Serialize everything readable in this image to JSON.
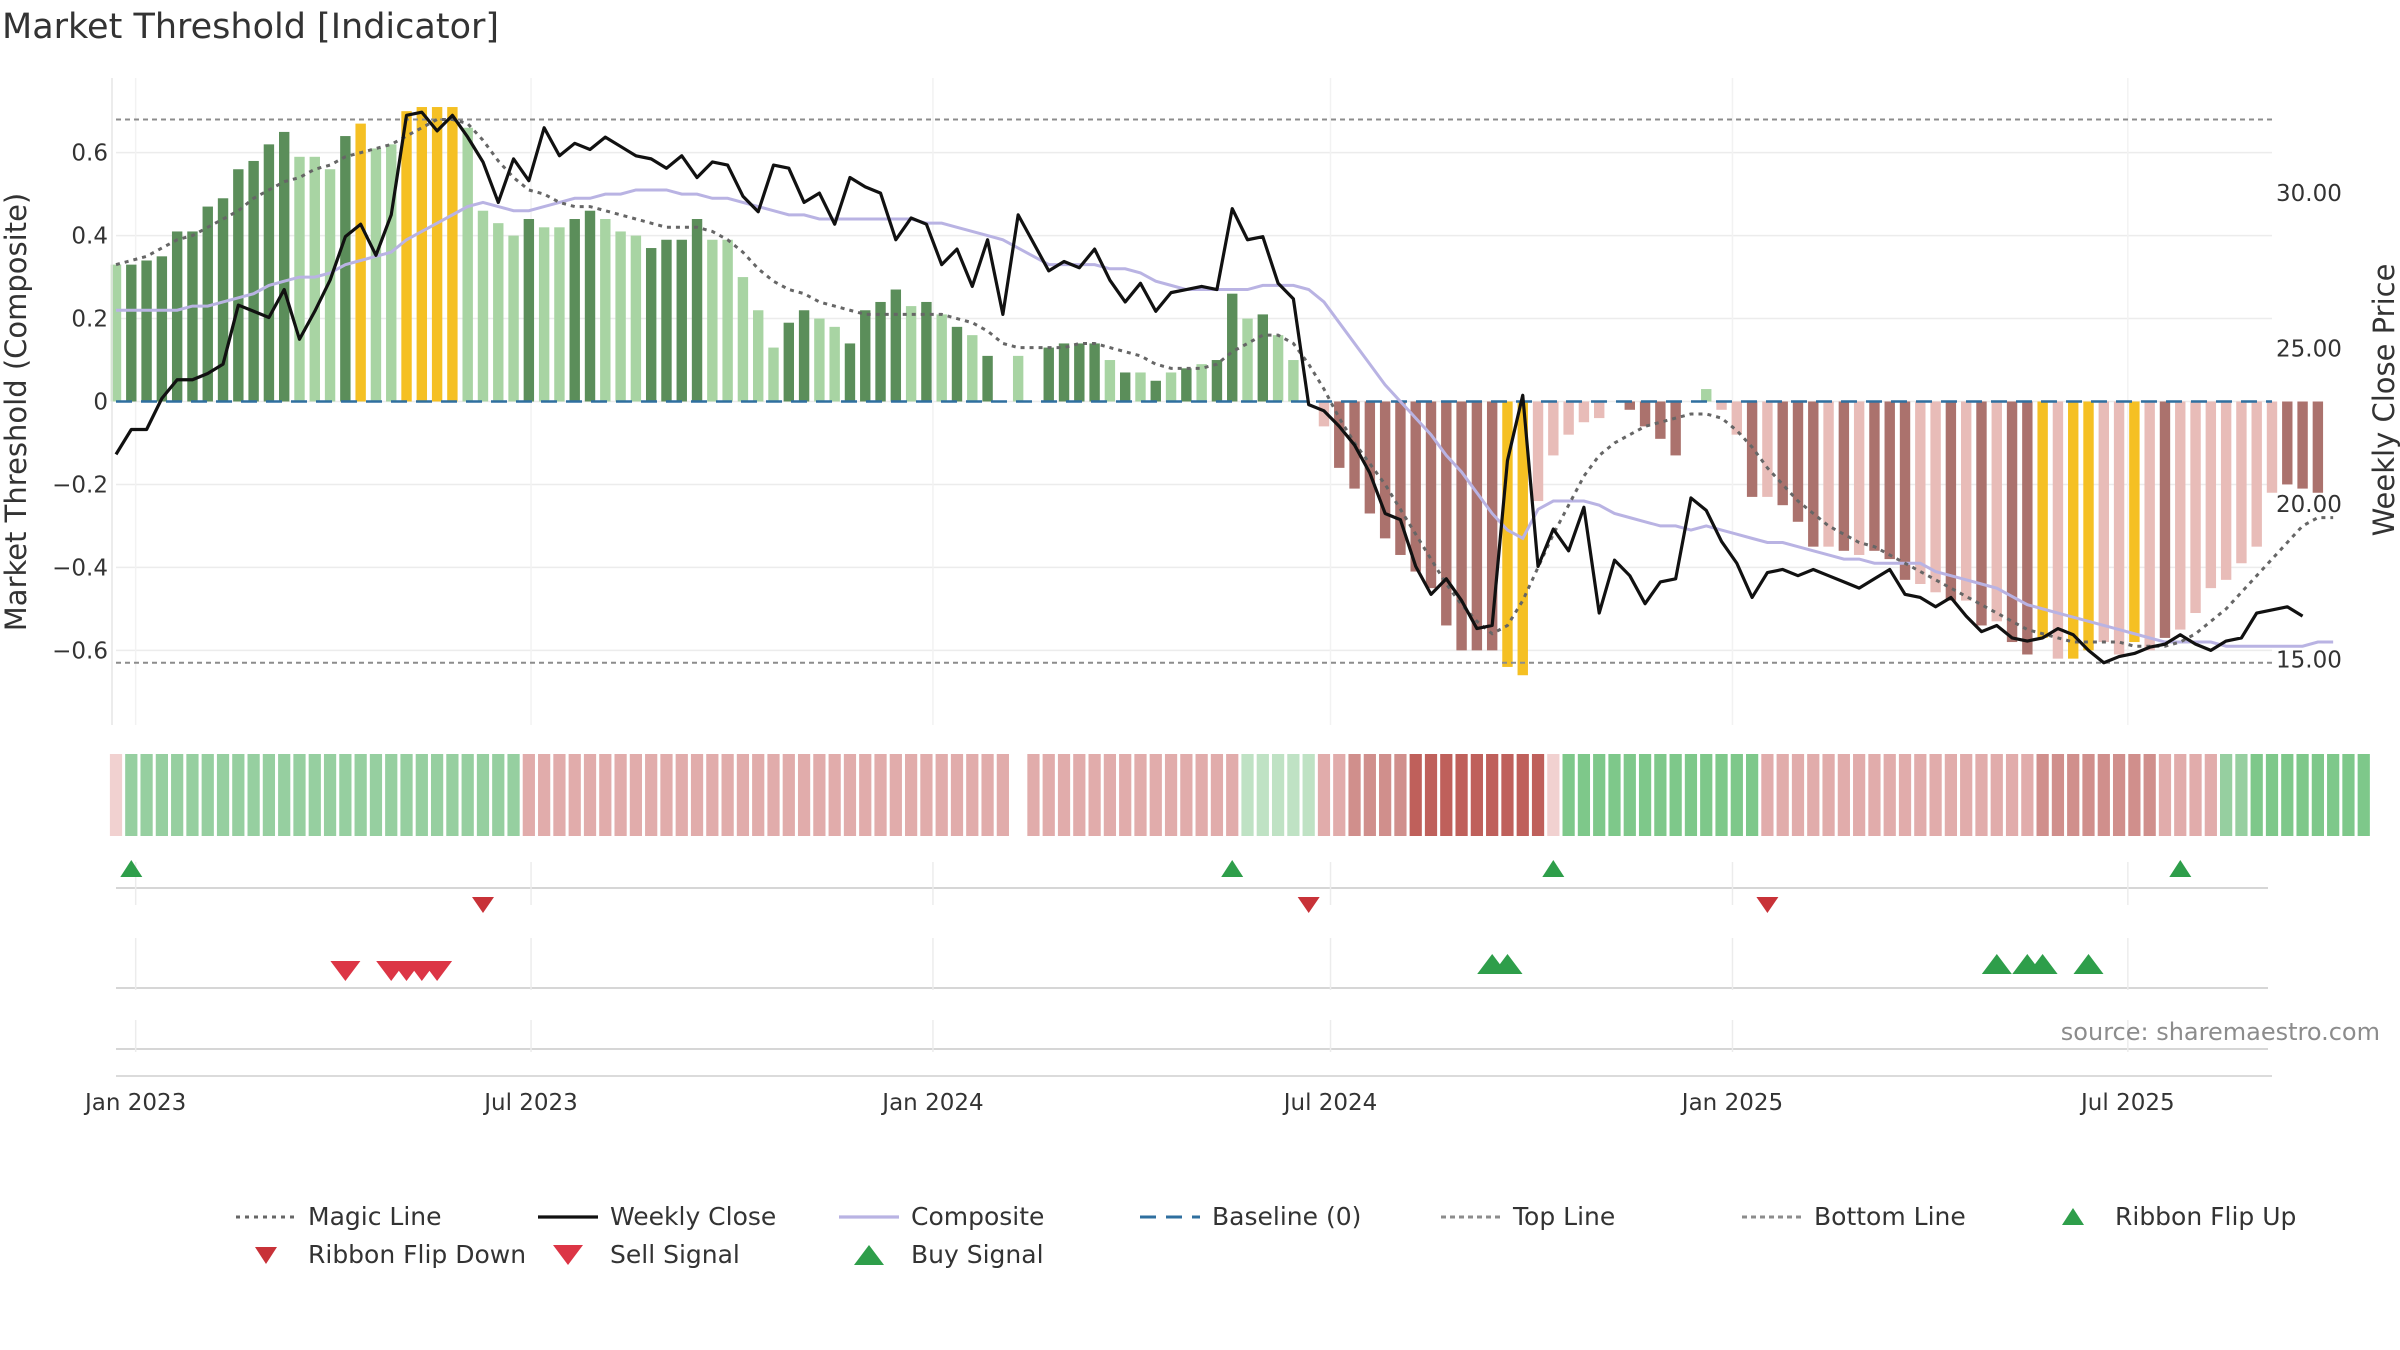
{
  "chart_data": {
    "type": "bar",
    "title": "Market Threshold [Indicator]",
    "ylabel_left": "Market Threshold (Composite)",
    "ylabel_right": "Weekly Close Price",
    "source": "source: sharemaestro.com",
    "ylim_left": [
      -0.78,
      0.78
    ],
    "ylim_right": [
      12.9,
      33.7
    ],
    "yticks_left": [
      0.6,
      0.4,
      0.2,
      0,
      -0.2,
      -0.4,
      -0.6
    ],
    "yticks_left_labels": [
      "0.6",
      "0.4",
      "0.2",
      "0",
      "−0.2",
      "−0.4",
      "−0.6"
    ],
    "yticks_right": [
      30,
      25,
      20,
      15
    ],
    "yticks_right_labels": [
      "30.00",
      "25.00",
      "20.00",
      "15.00"
    ],
    "x_range": [
      "2022-12-23",
      "2025-09-05"
    ],
    "xticks": [
      "2023-01-01",
      "2023-07-01",
      "2024-01-01",
      "2024-07-01",
      "2025-01-01",
      "2025-07-01"
    ],
    "xtick_labels": [
      "Jan 2023",
      "Jul 2023",
      "Jan 2024",
      "Jul 2024",
      "Jan 2025",
      "Jul 2025"
    ],
    "start_date": "2022-12-23",
    "top_line": 0.68,
    "bottom_line": -0.63,
    "baseline": 0,
    "grid": true,
    "legend_position": "bottom",
    "composite_bars": [
      0.33,
      0.33,
      0.34,
      0.35,
      0.41,
      0.41,
      0.47,
      0.49,
      0.56,
      0.58,
      0.62,
      0.65,
      0.59,
      0.59,
      0.56,
      0.64,
      0.67,
      0.61,
      0.62,
      0.7,
      0.71,
      0.71,
      0.71,
      0.66,
      0.46,
      0.43,
      0.4,
      0.44,
      0.42,
      0.42,
      0.44,
      0.46,
      0.44,
      0.41,
      0.4,
      0.37,
      0.39,
      0.39,
      0.44,
      0.39,
      0.39,
      0.3,
      0.22,
      0.13,
      0.19,
      0.22,
      0.2,
      0.18,
      0.14,
      0.22,
      0.24,
      0.27,
      0.23,
      0.24,
      0.21,
      0.18,
      0.16,
      0.11,
      0,
      0.11,
      0,
      0.13,
      0.14,
      0.14,
      0.14,
      0.1,
      0.07,
      0.07,
      0.05,
      0.07,
      0.08,
      0.09,
      0.1,
      0.26,
      0.2,
      0.21,
      0.16,
      0.1,
      0,
      -0.06,
      -0.16,
      -0.21,
      -0.27,
      -0.33,
      -0.37,
      -0.41,
      -0.45,
      -0.54,
      -0.6,
      -0.6,
      -0.6,
      -0.64,
      -0.66,
      -0.24,
      -0.13,
      -0.08,
      -0.05,
      -0.04,
      0,
      -0.02,
      -0.06,
      -0.09,
      -0.13,
      0,
      0.03,
      -0.02,
      -0.08,
      -0.23,
      -0.23,
      -0.25,
      -0.29,
      -0.35,
      -0.35,
      -0.36,
      -0.37,
      -0.36,
      -0.38,
      -0.43,
      -0.44,
      -0.46,
      -0.48,
      -0.48,
      -0.54,
      -0.53,
      -0.58,
      -0.61,
      -0.57,
      -0.62,
      -0.62,
      -0.6,
      -0.58,
      -0.61,
      -0.58,
      -0.6,
      -0.57,
      -0.55,
      -0.51,
      -0.45,
      -0.43,
      -0.39,
      -0.35,
      -0.22,
      -0.2,
      -0.21,
      -0.22
    ],
    "bar_categories": "bar colour codes: g = strong green, l = light green, y = threshold highlight, r = strong red, p = light red",
    "bar_colors": [
      "l",
      "g",
      "g",
      "g",
      "g",
      "g",
      "g",
      "g",
      "g",
      "g",
      "g",
      "g",
      "l",
      "l",
      "l",
      "g",
      "y",
      "l",
      "l",
      "y",
      "y",
      "y",
      "y",
      "l",
      "l",
      "l",
      "l",
      "g",
      "l",
      "l",
      "g",
      "g",
      "l",
      "l",
      "l",
      "g",
      "g",
      "g",
      "g",
      "l",
      "l",
      "l",
      "l",
      "l",
      "g",
      "g",
      "l",
      "l",
      "g",
      "g",
      "g",
      "g",
      "l",
      "g",
      "l",
      "g",
      "l",
      "g",
      "l",
      "l",
      "l",
      "g",
      "g",
      "g",
      "g",
      "l",
      "g",
      "l",
      "g",
      "l",
      "g",
      "l",
      "g",
      "g",
      "l",
      "g",
      "l",
      "l",
      "l",
      "p",
      "r",
      "r",
      "r",
      "r",
      "r",
      "r",
      "r",
      "r",
      "r",
      "r",
      "r",
      "y",
      "y",
      "p",
      "p",
      "p",
      "p",
      "p",
      "l",
      "r",
      "r",
      "r",
      "r",
      "l",
      "l",
      "p",
      "p",
      "r",
      "p",
      "r",
      "r",
      "r",
      "p",
      "r",
      "p",
      "r",
      "r",
      "r",
      "p",
      "p",
      "r",
      "p",
      "r",
      "p",
      "r",
      "r",
      "y",
      "p",
      "y",
      "y",
      "p",
      "p",
      "y",
      "p",
      "r",
      "p",
      "p",
      "p",
      "p",
      "p",
      "p",
      "p",
      "r",
      "r",
      "r",
      "r"
    ],
    "weekly_close": [
      21.6,
      22.4,
      22.4,
      23.4,
      24.0,
      24.0,
      24.2,
      24.5,
      26.4,
      26.2,
      26.0,
      26.9,
      25.3,
      26.2,
      27.2,
      28.6,
      29.0,
      28.0,
      29.3,
      32.5,
      32.6,
      32.0,
      32.5,
      31.8,
      31.0,
      29.7,
      31.1,
      30.4,
      32.1,
      31.2,
      31.6,
      31.4,
      31.8,
      31.5,
      31.2,
      31.1,
      30.8,
      31.2,
      30.5,
      31.0,
      30.9,
      29.9,
      29.4,
      30.9,
      30.8,
      29.7,
      30.0,
      29.0,
      30.5,
      30.2,
      30.0,
      28.5,
      29.2,
      29.0,
      27.7,
      28.2,
      27.0,
      28.5,
      26.1,
      29.3,
      28.4,
      27.5,
      27.8,
      27.6,
      28.2,
      27.2,
      26.5,
      27.1,
      26.2,
      26.8,
      26.9,
      27.0,
      26.9,
      29.5,
      28.5,
      28.6,
      27.1,
      26.6,
      23.2,
      23.0,
      22.5,
      21.9,
      21.0,
      19.7,
      19.5,
      18.0,
      17.1,
      17.6,
      16.9,
      16.0,
      16.1,
      21.4,
      23.5,
      18.0,
      19.2,
      18.5,
      19.9,
      16.5,
      18.2,
      17.7,
      16.8,
      17.5,
      17.6,
      20.2,
      19.8,
      18.8,
      18.1,
      17.0,
      17.8,
      17.9,
      17.7,
      17.9,
      17.7,
      17.5,
      17.3,
      17.6,
      17.9,
      17.1,
      17.0,
      16.7,
      17.0,
      16.4,
      15.9,
      16.1,
      15.7,
      15.6,
      15.7,
      16.0,
      15.8,
      15.3,
      14.9,
      15.1,
      15.2,
      15.4,
      15.5,
      15.8,
      15.5,
      15.3,
      15.6,
      15.7,
      16.5,
      16.6,
      16.7,
      16.4
    ],
    "magic_line": [
      0.33,
      0.34,
      0.35,
      0.37,
      0.39,
      0.4,
      0.42,
      0.44,
      0.46,
      0.49,
      0.51,
      0.53,
      0.54,
      0.56,
      0.57,
      0.59,
      0.6,
      0.61,
      0.62,
      0.64,
      0.66,
      0.68,
      0.68,
      0.67,
      0.63,
      0.58,
      0.54,
      0.51,
      0.5,
      0.48,
      0.47,
      0.47,
      0.46,
      0.45,
      0.44,
      0.43,
      0.42,
      0.42,
      0.42,
      0.41,
      0.39,
      0.36,
      0.32,
      0.29,
      0.27,
      0.26,
      0.24,
      0.23,
      0.22,
      0.21,
      0.21,
      0.21,
      0.21,
      0.21,
      0.21,
      0.2,
      0.19,
      0.17,
      0.14,
      0.13,
      0.13,
      0.13,
      0.13,
      0.14,
      0.14,
      0.13,
      0.12,
      0.11,
      0.09,
      0.08,
      0.08,
      0.08,
      0.09,
      0.12,
      0.14,
      0.16,
      0.16,
      0.14,
      0.09,
      0.03,
      -0.04,
      -0.1,
      -0.15,
      -0.2,
      -0.26,
      -0.32,
      -0.38,
      -0.44,
      -0.49,
      -0.53,
      -0.56,
      -0.54,
      -0.48,
      -0.4,
      -0.32,
      -0.25,
      -0.18,
      -0.13,
      -0.1,
      -0.08,
      -0.06,
      -0.05,
      -0.04,
      -0.03,
      -0.03,
      -0.04,
      -0.07,
      -0.11,
      -0.16,
      -0.2,
      -0.24,
      -0.27,
      -0.3,
      -0.32,
      -0.34,
      -0.35,
      -0.37,
      -0.39,
      -0.41,
      -0.43,
      -0.45,
      -0.47,
      -0.49,
      -0.51,
      -0.53,
      -0.55,
      -0.56,
      -0.57,
      -0.58,
      -0.58,
      -0.58,
      -0.58,
      -0.59,
      -0.59,
      -0.59,
      -0.58,
      -0.56,
      -0.53,
      -0.5,
      -0.46,
      -0.42,
      -0.38,
      -0.34,
      -0.3,
      -0.28,
      -0.28
    ],
    "composite_line": [
      0.22,
      0.22,
      0.22,
      0.22,
      0.22,
      0.23,
      0.23,
      0.24,
      0.25,
      0.26,
      0.28,
      0.29,
      0.3,
      0.3,
      0.31,
      0.33,
      0.34,
      0.35,
      0.36,
      0.39,
      0.41,
      0.43,
      0.45,
      0.47,
      0.48,
      0.47,
      0.46,
      0.46,
      0.47,
      0.48,
      0.49,
      0.49,
      0.5,
      0.5,
      0.51,
      0.51,
      0.51,
      0.5,
      0.5,
      0.49,
      0.49,
      0.48,
      0.47,
      0.46,
      0.45,
      0.45,
      0.44,
      0.44,
      0.44,
      0.44,
      0.44,
      0.44,
      0.44,
      0.43,
      0.43,
      0.42,
      0.41,
      0.4,
      0.39,
      0.37,
      0.35,
      0.33,
      0.33,
      0.33,
      0.33,
      0.32,
      0.32,
      0.31,
      0.29,
      0.28,
      0.27,
      0.27,
      0.27,
      0.27,
      0.27,
      0.28,
      0.28,
      0.28,
      0.27,
      0.24,
      0.19,
      0.14,
      0.09,
      0.04,
      0,
      -0.04,
      -0.08,
      -0.13,
      -0.17,
      -0.22,
      -0.27,
      -0.31,
      -0.33,
      -0.26,
      -0.24,
      -0.24,
      -0.24,
      -0.25,
      -0.27,
      -0.28,
      -0.29,
      -0.3,
      -0.3,
      -0.31,
      -0.3,
      -0.31,
      -0.32,
      -0.33,
      -0.34,
      -0.34,
      -0.35,
      -0.36,
      -0.37,
      -0.38,
      -0.38,
      -0.39,
      -0.39,
      -0.39,
      -0.39,
      -0.41,
      -0.42,
      -0.43,
      -0.44,
      -0.45,
      -0.47,
      -0.49,
      -0.5,
      -0.51,
      -0.52,
      -0.53,
      -0.54,
      -0.55,
      -0.56,
      -0.57,
      -0.58,
      -0.58,
      -0.58,
      -0.58,
      -0.59,
      -0.59,
      -0.59,
      -0.59,
      -0.59,
      -0.59,
      -0.58,
      -0.58
    ],
    "ribbon_note": "ribbon strip colours per week: dg dark green, mg green, lg light green, vg pale green, vr pale red, lr light red, mr red, dr dark red, gap",
    "ribbon": [
      "vr",
      "lg",
      "lg",
      "lg",
      "lg",
      "lg",
      "lg",
      "lg",
      "lg",
      "lg",
      "lg",
      "lg",
      "lg",
      "lg",
      "lg",
      "lg",
      "lg",
      "lg",
      "lg",
      "lg",
      "lg",
      "lg",
      "lg",
      "lg",
      "lg",
      "lg",
      "lg",
      "lr",
      "lr",
      "lr",
      "lr",
      "lr",
      "lr",
      "lr",
      "lr",
      "lr",
      "lr",
      "lr",
      "lr",
      "lr",
      "lr",
      "lr",
      "lr",
      "lr",
      "lr",
      "lr",
      "lr",
      "lr",
      "lr",
      "lr",
      "lr",
      "lr",
      "lr",
      "lr",
      "lr",
      "lr",
      "lr",
      "lr",
      "lr",
      "gap",
      "lr",
      "lr",
      "lr",
      "lr",
      "lr",
      "lr",
      "lr",
      "lr",
      "lr",
      "lr",
      "lr",
      "lr",
      "lr",
      "lr",
      "vg",
      "vg",
      "vg",
      "vg",
      "vg",
      "lr",
      "lr",
      "mr",
      "mr",
      "mr",
      "mr",
      "dr",
      "dr",
      "dr",
      "dr",
      "dr",
      "dr",
      "dr",
      "dr",
      "dr",
      "vr",
      "mg",
      "mg",
      "mg",
      "mg",
      "mg",
      "mg",
      "mg",
      "mg",
      "mg",
      "mg",
      "mg",
      "mg",
      "mg",
      "lr",
      "lr",
      "lr",
      "lr",
      "lr",
      "lr",
      "lr",
      "lr",
      "lr",
      "lr",
      "lr",
      "lr",
      "lr",
      "lr",
      "lr",
      "lr",
      "lr",
      "lr",
      "mr",
      "mr",
      "mr",
      "mr",
      "mr",
      "mr",
      "mr",
      "mr",
      "lr",
      "lr",
      "lr",
      "lr",
      "lg",
      "lg",
      "mg",
      "mg",
      "mg",
      "mg",
      "mg",
      "mg",
      "mg",
      "mg"
    ],
    "ribbon_flip_up": [
      1,
      73,
      94,
      135
    ],
    "ribbon_flip_down": [
      24,
      78,
      108
    ],
    "sell_signals": [
      15,
      18,
      19,
      20,
      21
    ],
    "buy_signals": [
      90,
      91,
      123,
      125,
      126,
      129
    ],
    "series": [
      {
        "name": "Magic Line",
        "color": "#666666",
        "style": "dotted"
      },
      {
        "name": "Weekly Close",
        "color": "#111111",
        "style": "solid"
      },
      {
        "name": "Composite",
        "color": "#b9b3e3",
        "style": "solid"
      },
      {
        "name": "Baseline (0)",
        "color": "#2f6f9f",
        "style": "dashed"
      },
      {
        "name": "Top Line",
        "color": "#8c8c8c",
        "style": "dotted"
      },
      {
        "name": "Bottom Line",
        "color": "#8c8c8c",
        "style": "dotted"
      },
      {
        "name": "Ribbon Flip Up",
        "color": "#2e9e4a",
        "style": "marker-up"
      },
      {
        "name": "Ribbon Flip Down",
        "color": "#c83238",
        "style": "marker-down"
      },
      {
        "name": "Sell Signal",
        "color": "#dc3545",
        "style": "marker-down-large"
      },
      {
        "name": "Buy Signal",
        "color": "#2e9e4a",
        "style": "marker-up-large"
      }
    ],
    "colors": {
      "g": "#5b8e5a",
      "l": "#a8d4a3",
      "y": "#f5c023",
      "r": "#ab726d",
      "p": "#e8bcb8",
      "dg": "#5fb36d",
      "mg": "#7ec88a",
      "lg": "#96cfa0",
      "vg": "#bfe2c4",
      "vr": "#f1d1d0",
      "lr": "#e1acab",
      "mr": "#d08f8c",
      "dr": "#bf605b",
      "close": "#111111",
      "composite": "#b9b3e3",
      "magic": "#666666",
      "baseline": "#2f6f9f",
      "threshold": "#8c8c8c",
      "up": "#2e9e4a",
      "down": "#c83238",
      "sell": "#dc3545"
    }
  }
}
